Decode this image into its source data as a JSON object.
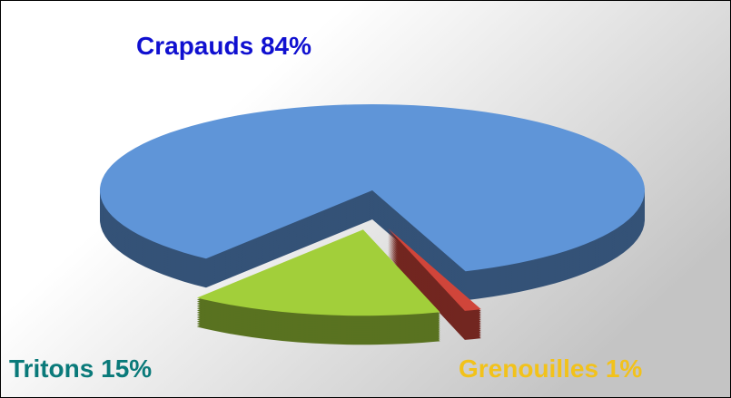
{
  "chart_data": {
    "type": "pie",
    "categories": [
      "Crapauds",
      "Tritons",
      "Grenouilles"
    ],
    "values": [
      84,
      15,
      1
    ],
    "value_labels": [
      "84%",
      "15%",
      "1%"
    ],
    "colors": [
      "#5f95d8",
      "#a2cf3a",
      "#d0453a"
    ],
    "label_colors": [
      "#1010d0",
      "#0a7a7a",
      "#f2c21a"
    ]
  }
}
